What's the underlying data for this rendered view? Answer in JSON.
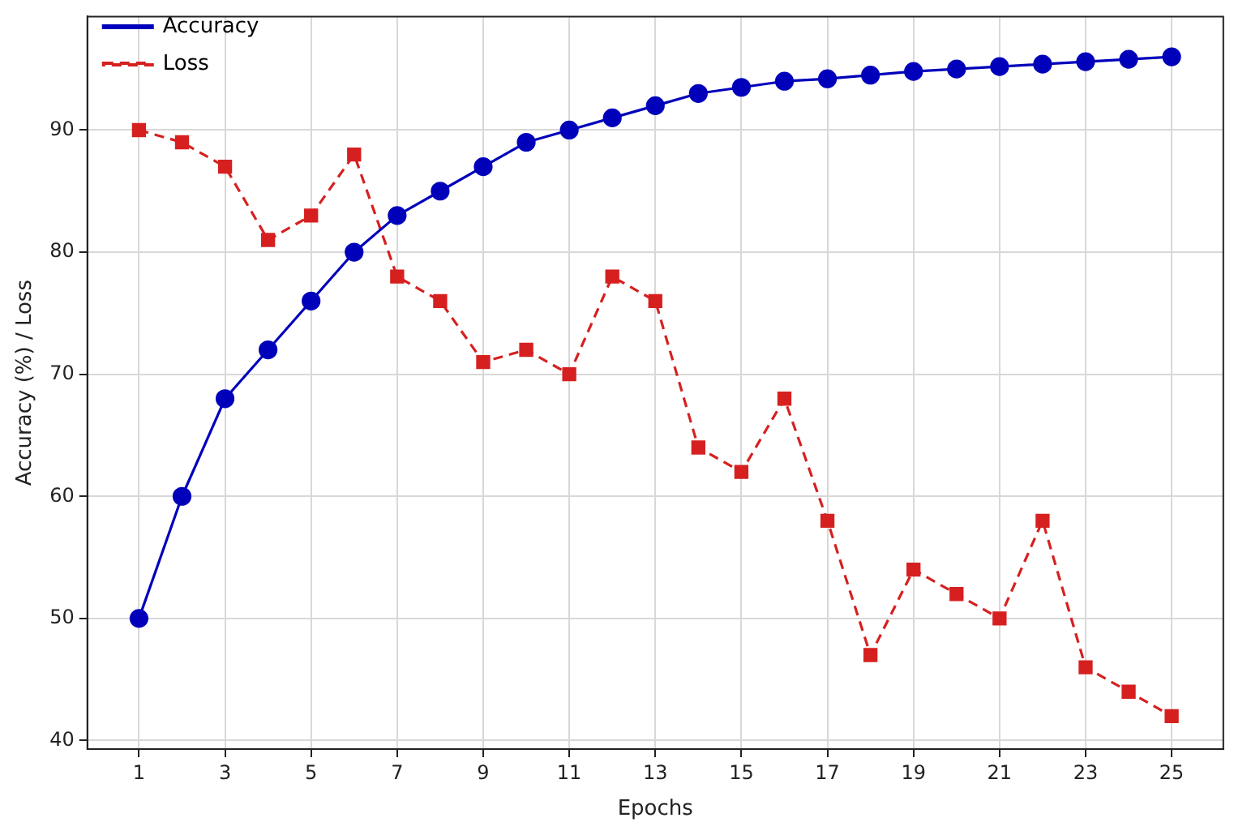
{
  "chart_data": {
    "type": "line",
    "xlabel": "Epochs",
    "ylabel": "Accuracy (%) / Loss",
    "x": [
      1,
      2,
      3,
      4,
      5,
      6,
      7,
      8,
      9,
      10,
      11,
      12,
      13,
      14,
      15,
      16,
      17,
      18,
      19,
      20,
      21,
      22,
      23,
      24,
      25
    ],
    "series": [
      {
        "name": "Accuracy",
        "color": "#0000bb",
        "marker": "circle",
        "line_style": "solid",
        "values": [
          50,
          60,
          68,
          72,
          76,
          80,
          83,
          85,
          87,
          89,
          90,
          91,
          92,
          93,
          93.5,
          94,
          94.2,
          94.5,
          94.8,
          95,
          95.2,
          95.4,
          95.6,
          95.8,
          96
        ]
      },
      {
        "name": "Loss",
        "color": "#d62020",
        "marker": "square",
        "line_style": "dashed",
        "values": [
          90,
          89,
          87,
          81,
          83,
          88,
          78,
          76,
          71,
          72,
          70,
          78,
          76,
          64,
          62,
          68,
          58,
          47,
          54,
          52,
          50,
          58,
          46,
          44,
          42
        ]
      }
    ],
    "xlim": [
      -0.2,
      26.2
    ],
    "xticks": [
      1,
      3,
      5,
      7,
      9,
      11,
      13,
      15,
      17,
      19,
      21,
      23,
      25
    ],
    "ylim": [
      39.3,
      99.3
    ],
    "yticks": [
      40,
      50,
      60,
      70,
      80,
      90
    ],
    "grid": true,
    "legend": "top left"
  }
}
